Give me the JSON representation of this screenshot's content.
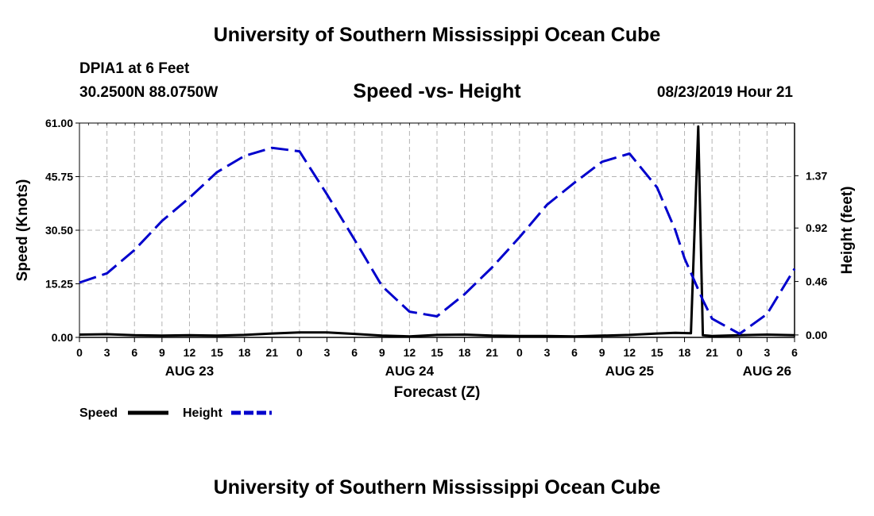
{
  "header": {
    "title": "University of Southern Mississippi Ocean Cube",
    "station": "DPIA1 at 6 Feet",
    "coordinates": "30.2500N 88.0750W",
    "chart_title": "Speed -vs- Height",
    "datetime": "08/23/2019 Hour 21"
  },
  "footer": {
    "title": "University of Southern Mississippi Ocean Cube"
  },
  "colors": {
    "speed": "#000000",
    "height": "#0000cc",
    "grid": "#b4b4b4"
  },
  "chart_data": {
    "type": "line",
    "title": "Speed -vs- Height",
    "xlabel": "Forecast (Z)",
    "ylabel": "Speed (Knots)",
    "y2label": "Height (feet)",
    "xlim": [
      0,
      78
    ],
    "ylim": [
      0,
      61
    ],
    "y2lim": [
      -0.021,
      1.823
    ],
    "x_ticks": [
      0,
      3,
      6,
      9,
      12,
      15,
      18,
      21,
      24,
      27,
      30,
      33,
      36,
      39,
      42,
      45,
      48,
      51,
      54,
      57,
      60,
      63,
      66,
      69,
      72,
      75,
      78
    ],
    "x_tick_labels": [
      "0",
      "3",
      "6",
      "9",
      "12",
      "15",
      "18",
      "21",
      "0",
      "3",
      "6",
      "9",
      "12",
      "15",
      "18",
      "21",
      "0",
      "3",
      "6",
      "9",
      "12",
      "15",
      "18",
      "21",
      "0",
      "3",
      "6"
    ],
    "date_labels": [
      {
        "x": 12,
        "label": "AUG 23"
      },
      {
        "x": 36,
        "label": "AUG 24"
      },
      {
        "x": 60,
        "label": "AUG 25"
      },
      {
        "x": 75,
        "label": "AUG 26"
      }
    ],
    "y_ticks": [
      0,
      15.25,
      30.5,
      45.75,
      61
    ],
    "y_tick_labels": [
      "0.00",
      "15.25",
      "30.50",
      "45.75",
      "61.00"
    ],
    "y2_ticks": [
      0,
      0.46,
      0.92,
      1.37
    ],
    "y2_tick_labels": [
      "0.00",
      "0.46",
      "0.92",
      "1.37"
    ],
    "legend": [
      {
        "name": "Speed",
        "style": "solid"
      },
      {
        "name": "Height",
        "style": "dashed"
      }
    ],
    "series": [
      {
        "name": "Speed",
        "axis": "left",
        "x": [
          0,
          3,
          6,
          9,
          12,
          15,
          18,
          21,
          24,
          27,
          30,
          33,
          36,
          39,
          42,
          45,
          48,
          51,
          54,
          57,
          60,
          63,
          65,
          66.7,
          67.5,
          68,
          69,
          72,
          75,
          78
        ],
        "values": [
          0.8,
          0.9,
          0.6,
          0.5,
          0.6,
          0.5,
          0.7,
          1.1,
          1.4,
          1.4,
          1.0,
          0.5,
          0.3,
          0.7,
          0.8,
          0.5,
          0.4,
          0.4,
          0.3,
          0.5,
          0.7,
          1.1,
          1.3,
          1.2,
          60,
          0.6,
          0.4,
          0.6,
          0.8,
          0.6
        ]
      },
      {
        "name": "Height",
        "axis": "right",
        "x": [
          0,
          3,
          6,
          9,
          12,
          15,
          18,
          21,
          24,
          27,
          30,
          33,
          36,
          39,
          42,
          45,
          48,
          51,
          54,
          57,
          60,
          63,
          65,
          66,
          68,
          69,
          72,
          75,
          78
        ],
        "values": [
          0.45,
          0.53,
          0.73,
          0.98,
          1.18,
          1.4,
          1.54,
          1.61,
          1.58,
          1.21,
          0.82,
          0.42,
          0.2,
          0.16,
          0.35,
          0.58,
          0.84,
          1.12,
          1.31,
          1.49,
          1.56,
          1.27,
          0.9,
          0.66,
          0.3,
          0.14,
          0.01,
          0.18,
          0.57
        ]
      }
    ]
  }
}
